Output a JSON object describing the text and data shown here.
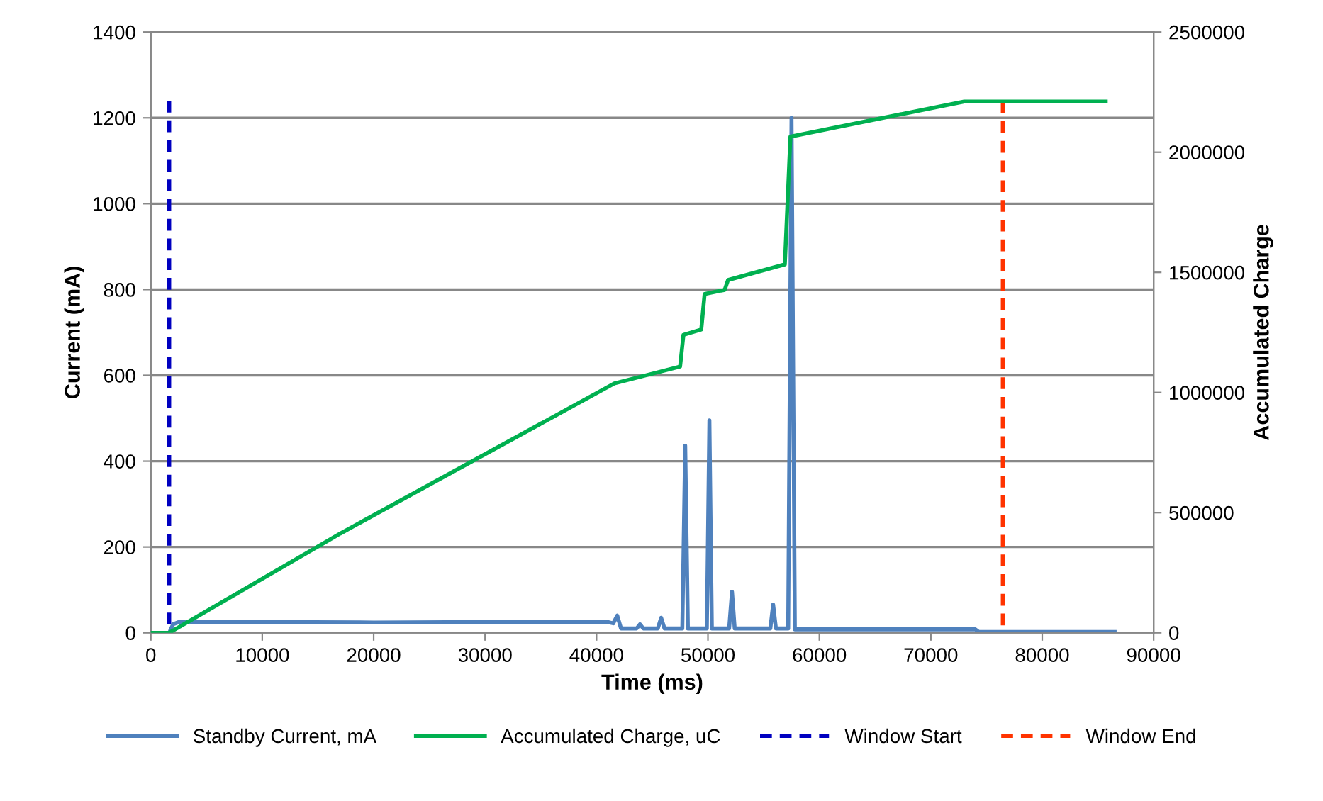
{
  "chart_data": {
    "type": "line",
    "xlabel": "Time (ms)",
    "ylabel": "Current (mA)",
    "y2label": "Accumulated Charge",
    "xlim": [
      0,
      90000
    ],
    "xticks": [
      0,
      10000,
      20000,
      30000,
      40000,
      50000,
      60000,
      70000,
      80000,
      90000
    ],
    "ylim": [
      0,
      1400
    ],
    "yticks": [
      0,
      200,
      400,
      600,
      800,
      1000,
      1200,
      1400
    ],
    "y2lim": [
      0,
      2500000
    ],
    "y2ticks": [
      0,
      500000,
      1000000,
      1500000,
      2000000,
      2500000
    ],
    "grid": "y",
    "legend": "bottom",
    "marker": "none",
    "series": [
      {
        "name": "Standby Current, mA",
        "color": "#4f81bd",
        "line_style": "solid",
        "x": [
          0,
          1650,
          2000,
          2500,
          10000,
          20000,
          30000,
          41000,
          41500,
          41860,
          42200,
          43600,
          43900,
          44200,
          45500,
          45800,
          46100,
          47700,
          47960,
          48200,
          49900,
          50130,
          50350,
          51900,
          52160,
          52400,
          55600,
          55850,
          56100,
          57200,
          57500,
          57800,
          74000,
          74300,
          86500
        ],
        "values": [
          0,
          0,
          20,
          25,
          25,
          24,
          25,
          25,
          22,
          40,
          10,
          10,
          20,
          10,
          10,
          35,
          10,
          10,
          436,
          10,
          10,
          495,
          10,
          10,
          96,
          10,
          10,
          66,
          10,
          10,
          1200,
          8,
          8,
          2,
          2
        ]
      },
      {
        "name": "Accumulated Charge, uC",
        "color": "#00b050",
        "line_style": "solid",
        "axis": "y2",
        "x": [
          0,
          1650,
          17000,
          41600,
          47500,
          47800,
          49400,
          49700,
          51500,
          51800,
          56900,
          57400,
          73000,
          85700
        ],
        "values": [
          0,
          0,
          413000,
          1038000,
          1108000,
          1240000,
          1262000,
          1410000,
          1427000,
          1468000,
          1533000,
          2065000,
          2211000,
          2211000
        ]
      },
      {
        "name": "Window Start",
        "color": "#0000c0",
        "line_style": "dashed",
        "x": [
          1650,
          1650
        ],
        "values": [
          1240,
          0
        ]
      },
      {
        "name": "Window End",
        "color": "#ff3300",
        "line_style": "dashed",
        "x": [
          76460,
          76460
        ],
        "values": [
          1238,
          0
        ]
      }
    ]
  }
}
